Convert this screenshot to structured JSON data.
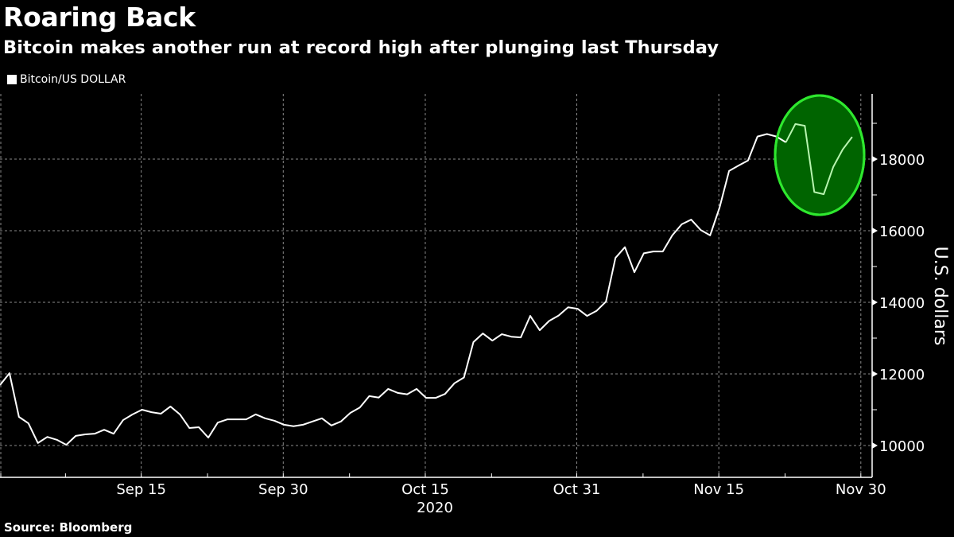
{
  "header": {
    "title": "Roaring Back",
    "subtitle": "Bitcoin makes another run at record high after plunging last Thursday"
  },
  "legend": {
    "label": "Bitcoin/US DOLLAR",
    "color": "#ffffff"
  },
  "footer": {
    "source": "Source: Bloomberg"
  },
  "colors": {
    "background": "#000000",
    "line": "#ffffff",
    "grid": "#8a8a8a",
    "highlight_fill": "#006400",
    "highlight_stroke": "#2ee82e",
    "highlight_line": "#b8f5b0"
  },
  "chart_data": {
    "type": "line",
    "title": "Roaring Back",
    "subtitle": "Bitcoin makes another run at record high after plunging last Thursday",
    "xlabel": "2020",
    "ylabel": "U.S. dollars",
    "ylim": [
      9200,
      19700
    ],
    "yticks": [
      10000,
      12000,
      14000,
      16000,
      18000
    ],
    "xtick_labels": [
      "Sep 15",
      "Sep 30",
      "Oct 15",
      "Oct 31",
      "Nov 15",
      "Nov 30"
    ],
    "year_label": "2020",
    "grid": true,
    "legend_position": "top-left",
    "series": [
      {
        "name": "Bitcoin/US DOLLAR",
        "x_start": "Aug 31",
        "x_end": "Nov 30",
        "frequency": "daily",
        "values": [
          11690,
          12020,
          10800,
          10620,
          10070,
          10240,
          10160,
          10020,
          10270,
          10310,
          10330,
          10440,
          10330,
          10710,
          10870,
          11000,
          10930,
          10890,
          11090,
          10870,
          10490,
          10510,
          10220,
          10640,
          10730,
          10730,
          10730,
          10870,
          10760,
          10690,
          10580,
          10540,
          10580,
          10670,
          10760,
          10560,
          10670,
          10910,
          11060,
          11380,
          11340,
          11580,
          11470,
          11430,
          11580,
          11330,
          11330,
          11440,
          11740,
          11900,
          12890,
          13130,
          12930,
          13110,
          13040,
          13020,
          13620,
          13220,
          13480,
          13630,
          13860,
          13820,
          13620,
          13760,
          14020,
          15240,
          15540,
          14840,
          15370,
          15420,
          15420,
          15870,
          16180,
          16310,
          16020,
          15870,
          16650,
          17670,
          17820,
          17960,
          18630,
          18700,
          18630,
          18470,
          18980,
          18930,
          17080,
          17020,
          17780,
          18270,
          18620
        ]
      }
    ],
    "annotations": [
      {
        "type": "ellipse",
        "label": "highlight of late-Nov plunge and recovery",
        "center_x_date": "Nov 26",
        "fill": "#006400",
        "stroke": "#2ee82e"
      }
    ]
  }
}
